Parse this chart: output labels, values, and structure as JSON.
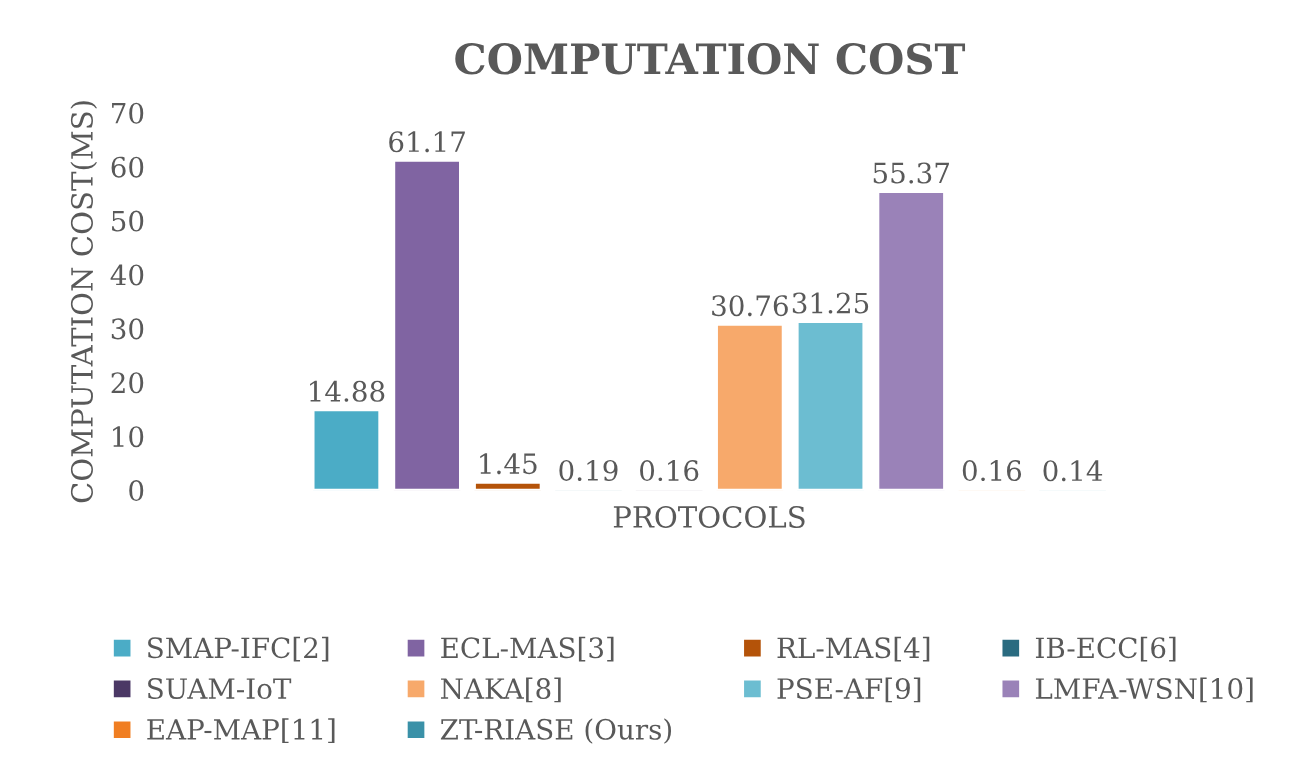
{
  "chart_data": {
    "type": "bar",
    "title": "COMPUTATION COST",
    "xlabel": "PROTOCOLS",
    "ylabel": "COMPUTATION COST(MS)",
    "categories": [
      null
    ],
    "series": [
      {
        "name": "SMAP-IFC[2]",
        "color": "#4bacc6",
        "values": [
          14.88
        ]
      },
      {
        "name": "ECL-MAS[3]",
        "color": "#8064a2",
        "values": [
          61.17
        ]
      },
      {
        "name": "RL-MAS[4]",
        "color": "#b45309",
        "values": [
          1.45
        ]
      },
      {
        "name": "IB-ECC[6]",
        "color": "#2a6b80",
        "values": [
          0.19
        ]
      },
      {
        "name": "SUAM-IoT",
        "color": "#4b3865",
        "values": [
          0.16
        ]
      },
      {
        "name": "NAKA[8]",
        "color": "#f7a96b",
        "values": [
          30.76
        ]
      },
      {
        "name": "PSE-AF[9]",
        "color": "#6cbdd1",
        "values": [
          31.25
        ]
      },
      {
        "name": "LMFA-WSN[10]",
        "color": "#9a82b8",
        "values": [
          55.37
        ]
      },
      {
        "name": "EAP-MAP[11]",
        "color": "#f07e22",
        "values": [
          0.16
        ]
      },
      {
        "name": "ZT-RIASE (Ours)",
        "color": "#3a91a8",
        "values": [
          0.14
        ]
      }
    ],
    "ylim": [
      0,
      70
    ],
    "yticks": [
      0,
      10,
      20,
      30,
      40,
      50,
      60,
      70
    ],
    "data_labels": true,
    "legend": "bottom",
    "grid": false
  }
}
